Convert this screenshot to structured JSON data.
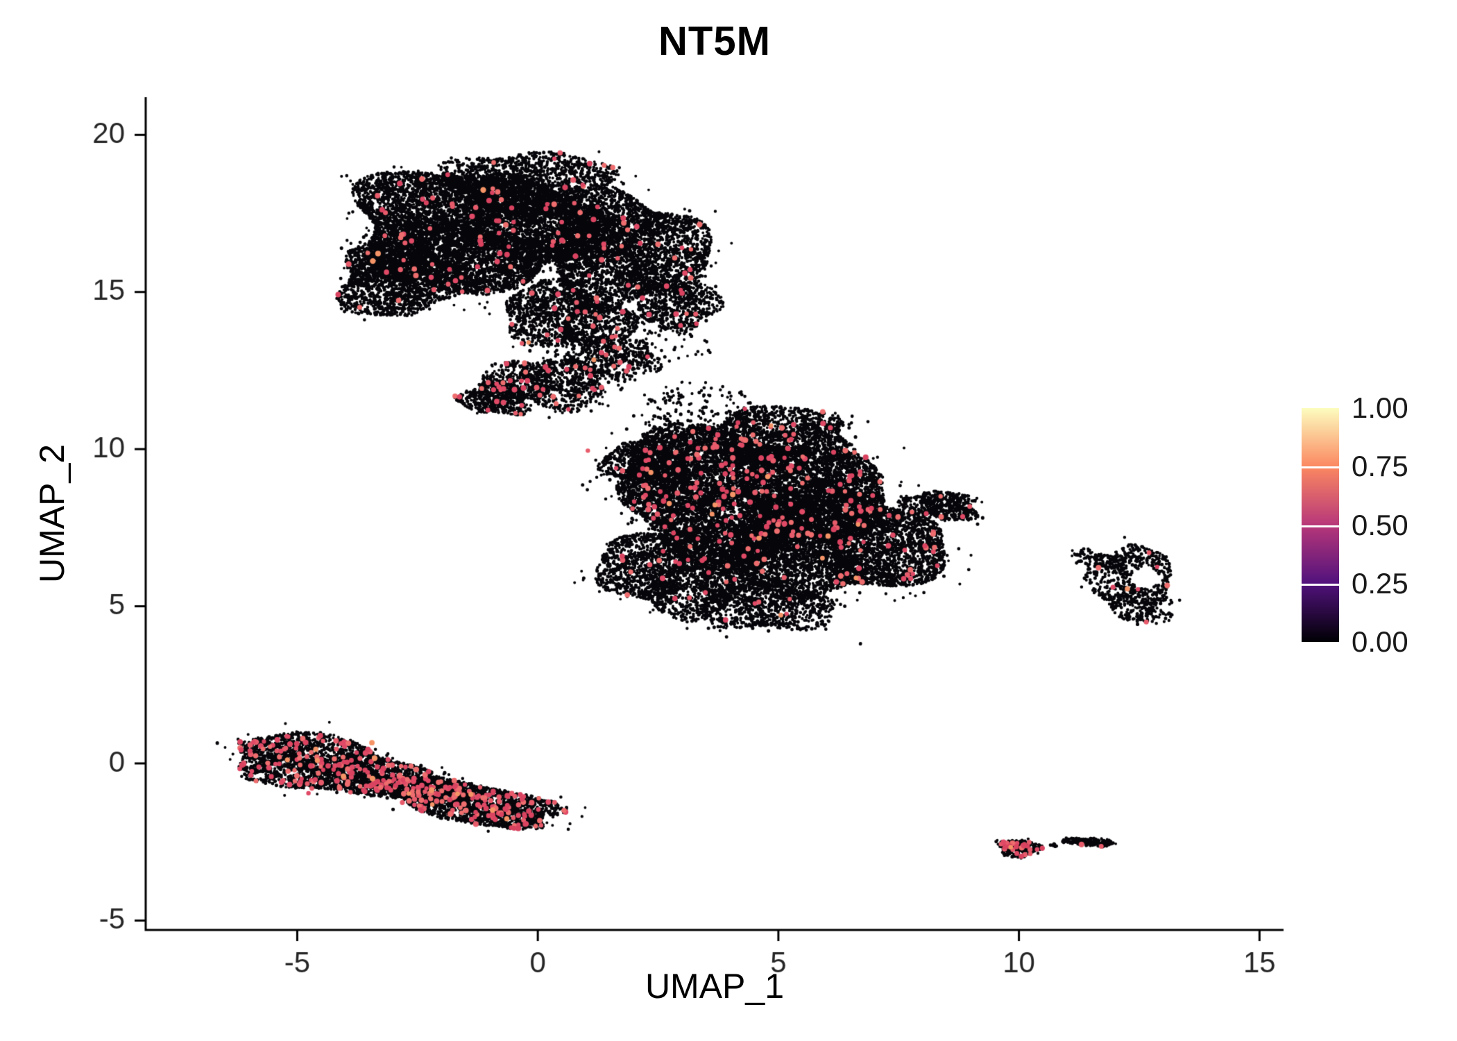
{
  "chart_data": {
    "type": "scatter",
    "title": "NT5M",
    "xlabel": "UMAP_1",
    "ylabel": "UMAP_2",
    "xlim": [
      -8.15,
      15.5
    ],
    "ylim": [
      -5.3,
      21.2
    ],
    "x_ticks": [
      -5,
      0,
      5,
      10,
      15
    ],
    "x_tick_labels": [
      "-5",
      "0",
      "5",
      "10",
      "15"
    ],
    "y_ticks": [
      20,
      15,
      10,
      5,
      0,
      -5
    ],
    "y_tick_labels": [
      "20",
      "15",
      "10",
      "5",
      "0",
      "-5"
    ],
    "grid": false,
    "legend": {
      "position": "right",
      "labels": [
        "1.00",
        "0.75",
        "0.50",
        "0.25",
        "0.00"
      ],
      "gradient_stops": [
        {
          "pos": 0.0,
          "color": "#000004"
        },
        {
          "pos": 0.25,
          "color": "#51127c"
        },
        {
          "pos": 0.5,
          "color": "#b73779"
        },
        {
          "pos": 0.75,
          "color": "#fb8861"
        },
        {
          "pos": 1.0,
          "color": "#fcfdbf"
        }
      ]
    },
    "style": {
      "point_black": "#06060a",
      "point_red_palette": [
        "#e04a66",
        "#e75b6b",
        "#d94360",
        "#ee6d6e"
      ],
      "point_orange": "#f59467",
      "axis_color": "#000000",
      "tick_label_color": "#262626"
    },
    "clusters": [
      {
        "name": "upper-blob",
        "red": 0.008,
        "lobes": [
          {
            "cx": -1.3,
            "cy": 17.0,
            "rx": 2.6,
            "ry": 1.9,
            "rot": -5,
            "count": 8000
          },
          {
            "cx": 1.8,
            "cy": 16.3,
            "rx": 1.7,
            "ry": 1.8,
            "rot": 0,
            "count": 3500
          },
          {
            "cx": -2.9,
            "cy": 15.4,
            "rx": 1.3,
            "ry": 1.2,
            "rot": 20,
            "count": 1800
          },
          {
            "cx": -0.2,
            "cy": 18.5,
            "rx": 1.7,
            "ry": 1.0,
            "rot": 0,
            "count": 1400
          },
          {
            "cx": 0.6,
            "cy": 14.2,
            "rx": 1.4,
            "ry": 1.0,
            "rot": -20,
            "count": 1300,
            "red": 0.015
          },
          {
            "cx": 2.9,
            "cy": 14.6,
            "rx": 0.9,
            "ry": 0.8,
            "rot": 0,
            "count": 600
          }
        ]
      },
      {
        "name": "neck",
        "red": 0.025,
        "lobes": [
          {
            "cx": 0.2,
            "cy": 12.1,
            "rx": 1.3,
            "ry": 0.75,
            "rot": -15,
            "count": 900
          },
          {
            "cx": -0.9,
            "cy": 11.6,
            "rx": 0.75,
            "ry": 0.5,
            "rot": -10,
            "count": 550
          },
          {
            "cx": 1.6,
            "cy": 12.9,
            "rx": 0.95,
            "ry": 0.7,
            "rot": 0,
            "count": 420
          },
          {
            "cx": 1.5,
            "cy": 13.3,
            "rx": 1.8,
            "ry": 1.3,
            "rot": 0,
            "count": 250,
            "red": 0.01
          },
          {
            "cx": 3.3,
            "cy": 11.3,
            "rx": 1.3,
            "ry": 0.8,
            "rot": 0,
            "count": 150,
            "red": 0.01
          }
        ]
      },
      {
        "name": "central-blob",
        "red": 0.012,
        "lobes": [
          {
            "cx": 4.3,
            "cy": 8.6,
            "rx": 2.8,
            "ry": 2.0,
            "rot": -8,
            "count": 8500,
            "red": 0.018
          },
          {
            "cx": 6.2,
            "cy": 7.0,
            "rx": 2.2,
            "ry": 1.7,
            "rot": 0,
            "count": 5000
          },
          {
            "cx": 3.0,
            "cy": 6.2,
            "rx": 1.7,
            "ry": 1.4,
            "rot": 10,
            "count": 2600,
            "red": 0.006
          },
          {
            "cx": 4.9,
            "cy": 10.4,
            "rx": 1.7,
            "ry": 0.9,
            "rot": 0,
            "count": 1600,
            "red": 0.02
          },
          {
            "cx": 8.4,
            "cy": 8.2,
            "rx": 0.8,
            "ry": 0.45,
            "rot": -10,
            "count": 500
          },
          {
            "cx": 2.4,
            "cy": 9.6,
            "rx": 1.0,
            "ry": 0.8,
            "rot": 0,
            "count": 800
          },
          {
            "cx": 4.8,
            "cy": 5.0,
            "rx": 1.4,
            "ry": 0.8,
            "rot": 0,
            "count": 900,
            "red": 0.006
          }
        ]
      },
      {
        "name": "right-ring",
        "red": 0.02,
        "lobes": [
          {
            "cx": 12.4,
            "cy": 5.7,
            "rx": 0.85,
            "ry": 1.25,
            "rot": 10,
            "count": 800,
            "hole": {
              "cx": 12.62,
              "cy": 5.9,
              "rx": 0.3,
              "ry": 0.33
            }
          },
          {
            "cx": 11.6,
            "cy": 6.5,
            "rx": 0.55,
            "ry": 0.25,
            "rot": -20,
            "count": 110,
            "red": 0
          }
        ]
      },
      {
        "name": "lower-left-streak",
        "red": 0.065,
        "lobes": [
          {
            "cx": -4.3,
            "cy": -0.1,
            "rx": 2.2,
            "ry": 0.85,
            "rot": -15,
            "count": 2600
          },
          {
            "cx": -1.5,
            "cy": -1.2,
            "rx": 2.1,
            "ry": 0.62,
            "rot": -17,
            "count": 2300
          }
        ]
      },
      {
        "name": "bottom-islands",
        "red": 0.03,
        "lobes": [
          {
            "cx": 10.0,
            "cy": -2.7,
            "rx": 0.42,
            "ry": 0.28,
            "rot": 0,
            "count": 260,
            "red": 0.1
          },
          {
            "cx": 11.45,
            "cy": -2.5,
            "rx": 0.55,
            "ry": 0.13,
            "rot": -5,
            "count": 170,
            "red": 0.005
          },
          {
            "cx": 10.72,
            "cy": -2.6,
            "rx": 0.08,
            "ry": 0.05,
            "rot": 0,
            "count": 10,
            "red": 0
          }
        ]
      },
      {
        "name": "outlier-point",
        "red": 0,
        "lobes": [
          {
            "cx": 6.7,
            "cy": 3.8,
            "rx": 0.03,
            "ry": 0.03,
            "rot": 0,
            "count": 2
          }
        ]
      }
    ]
  }
}
